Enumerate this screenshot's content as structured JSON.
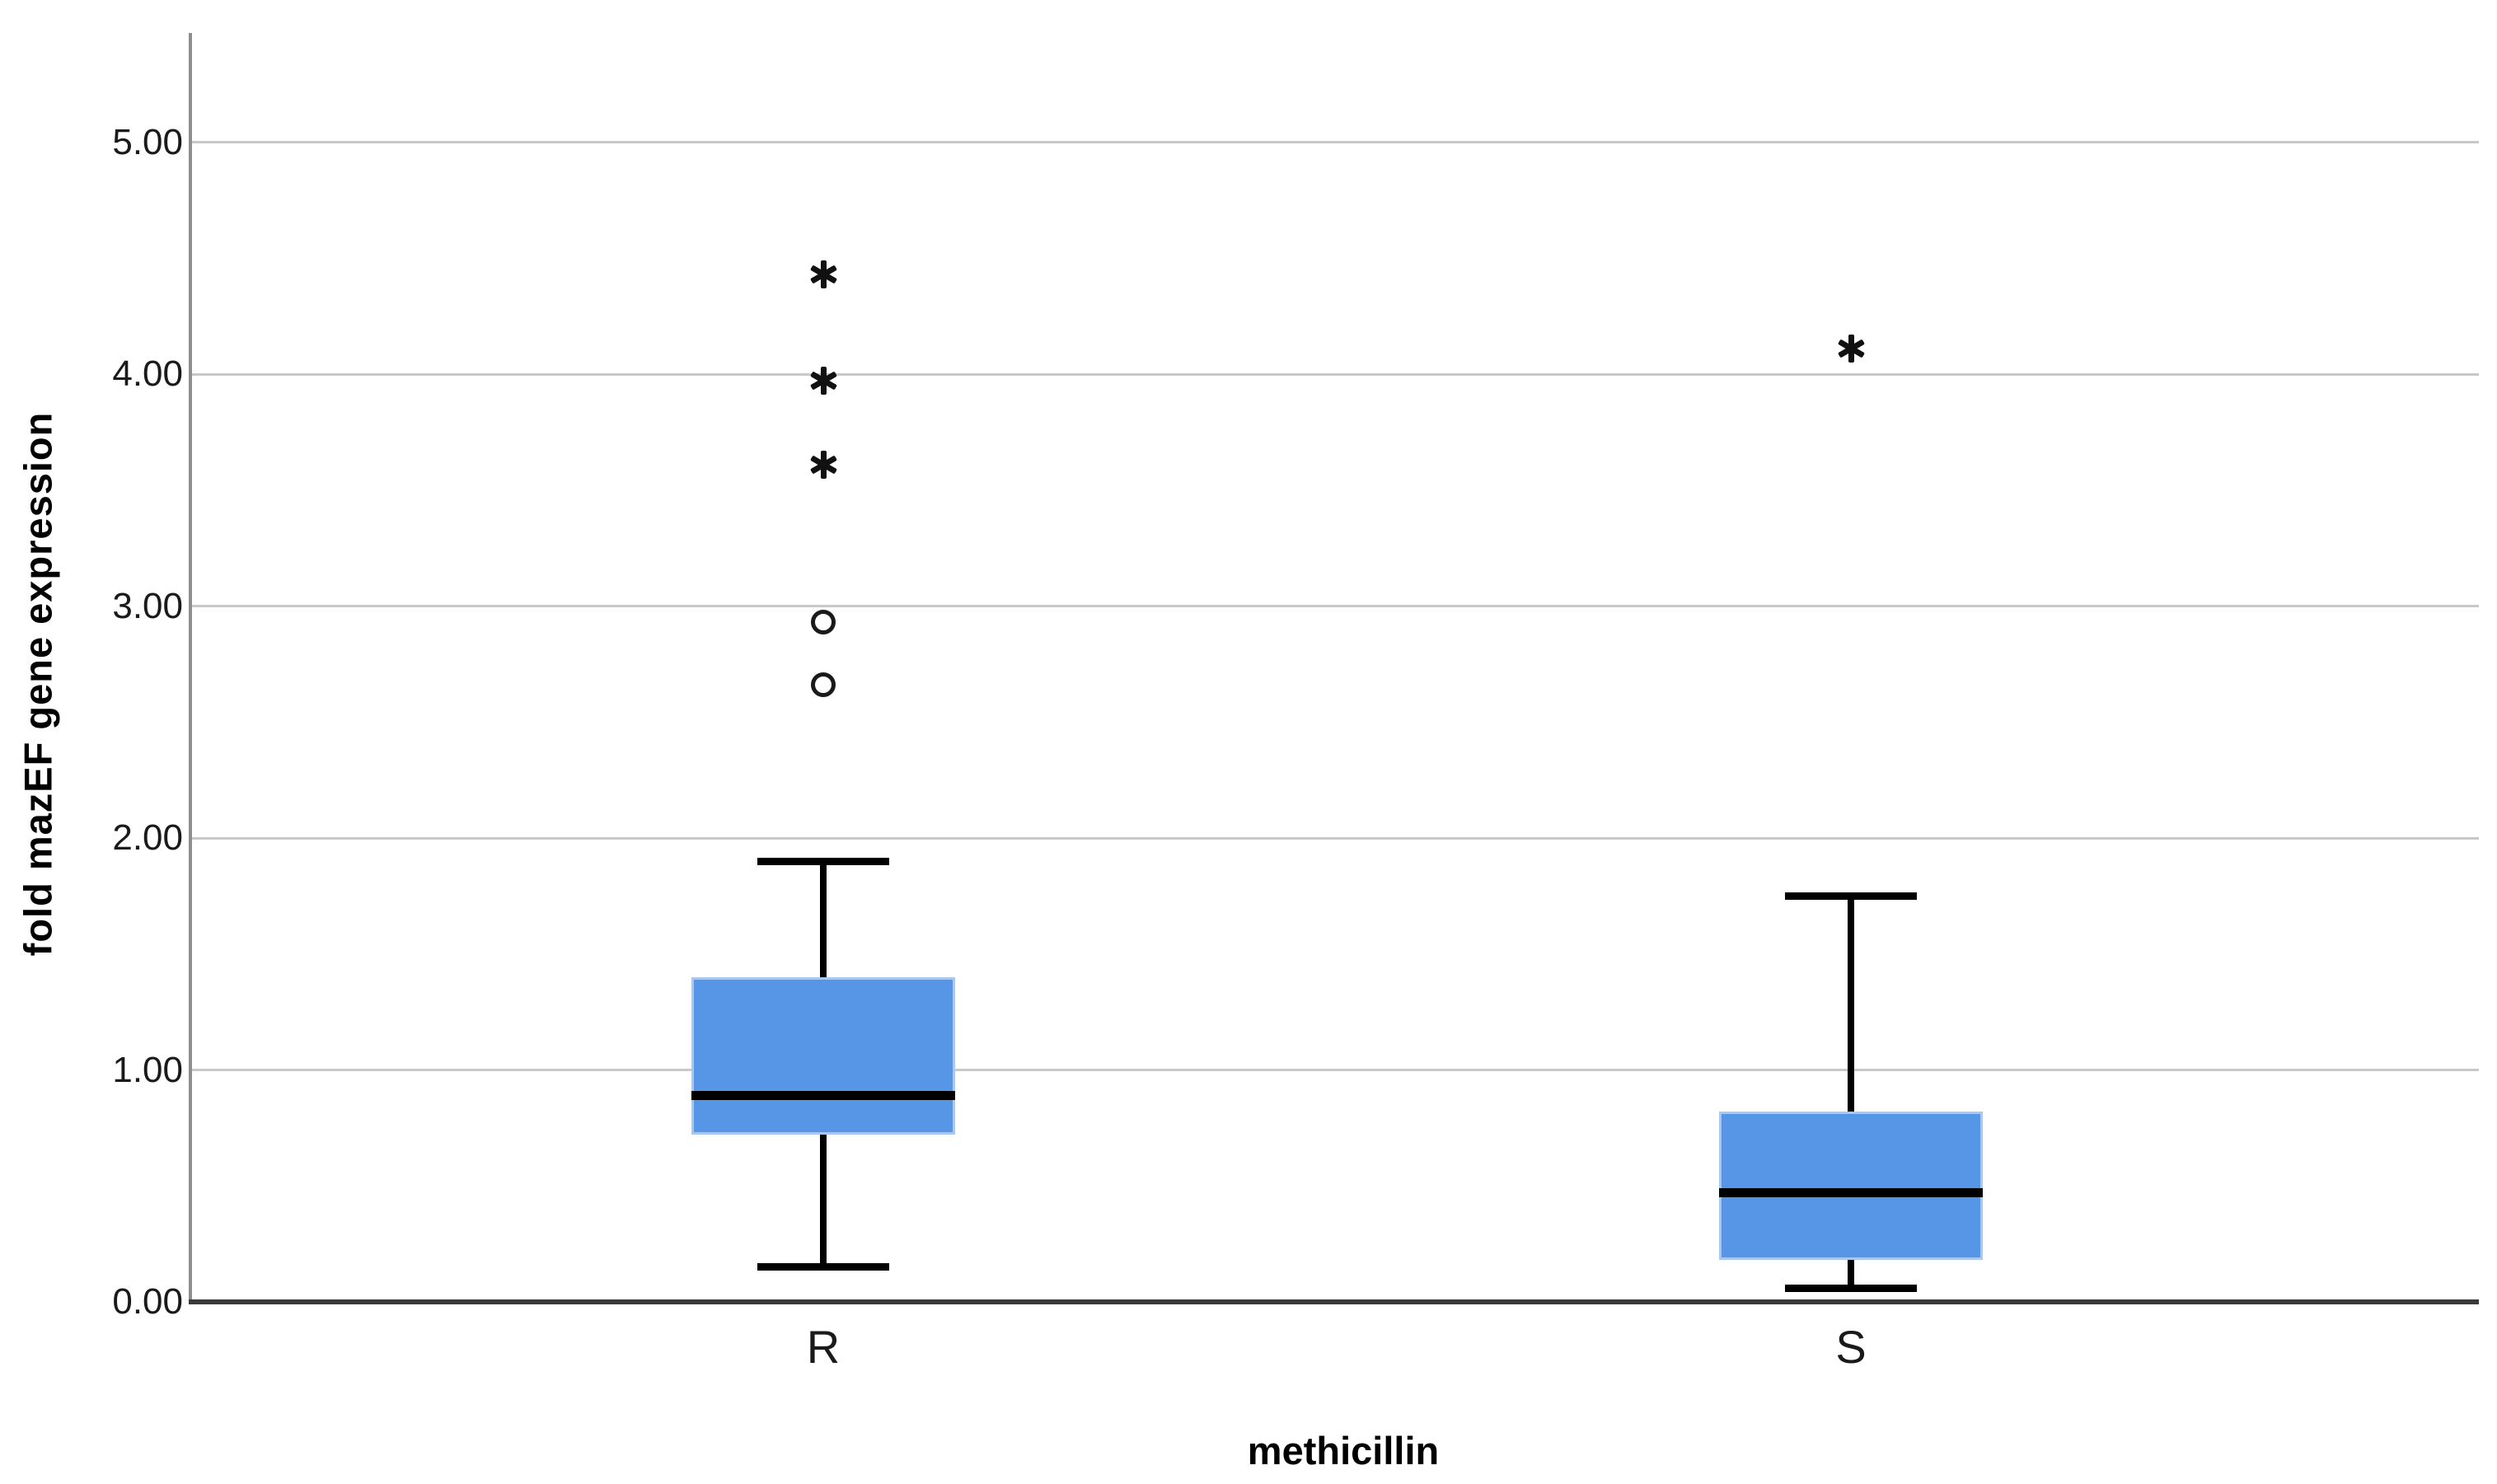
{
  "figure": {
    "background": "#ffffff",
    "colors": {
      "box_fill": "#5795E6",
      "box_edge": "#A8C8F4",
      "median_line": "#000000",
      "whisker": "#000000",
      "gridline": "#C8C8C8",
      "x_axis_line": "#3A3A3A",
      "y_axis_line": "#8E8E8E",
      "tick_text": "#1A1A1A",
      "marker": "#1A1A1A"
    }
  },
  "chart_data": {
    "type": "boxplot",
    "title": "",
    "xlabel": "methicillin",
    "ylabel": "fold mazEF gene expression",
    "ylim": [
      0,
      5.47
    ],
    "yticks": [
      0,
      1,
      2,
      3,
      4,
      5
    ],
    "ytick_labels": [
      "0.00",
      "1.00",
      "2.00",
      "3.00",
      "4.00",
      "5.00"
    ],
    "grid": "horizontal",
    "legend": null,
    "categories": [
      "R",
      "S"
    ],
    "series": [
      {
        "name": "R",
        "whisker_low": 0.15,
        "q1": 0.72,
        "median": 0.89,
        "q3": 1.4,
        "whisker_high": 1.9,
        "outliers_circle": [
          2.66,
          2.93
        ],
        "outliers_extreme": [
          3.61,
          3.97,
          4.43
        ]
      },
      {
        "name": "S",
        "whisker_low": 0.06,
        "q1": 0.18,
        "median": 0.47,
        "q3": 0.82,
        "whisker_high": 1.75,
        "outliers_circle": [],
        "outliers_extreme": [
          4.11
        ]
      }
    ]
  }
}
